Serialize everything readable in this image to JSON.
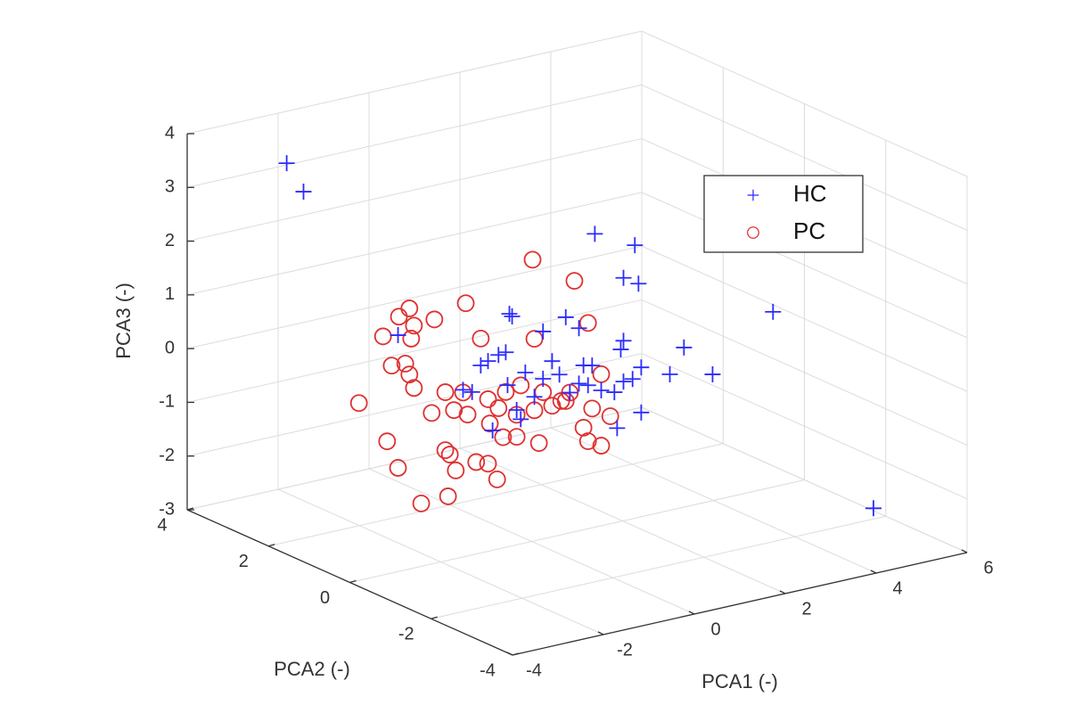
{
  "chart_data": {
    "type": "scatter3d",
    "xlabel": "PCA1 (-)",
    "ylabel": "PCA2 (-)",
    "zlabel": "PCA3 (-)",
    "xlim": [
      -4,
      6
    ],
    "ylim": [
      -4,
      4
    ],
    "zlim": [
      -3,
      4
    ],
    "xticks": [
      -4,
      -2,
      0,
      2,
      4,
      6
    ],
    "yticks": [
      -4,
      -2,
      0,
      2,
      4
    ],
    "zticks": [
      -3,
      -2,
      -1,
      0,
      1,
      2,
      3,
      4
    ],
    "grid": true,
    "legend": "upper right",
    "series": [
      {
        "name": "HC",
        "color": "#2b2bff",
        "marker": "+",
        "x": [
          -3.6,
          -3.23,
          1.39,
          2.27,
          2.02,
          2.35,
          5.31,
          -0.49,
          -0.43,
          0.75,
          1.04,
          0.25,
          -2.94,
          2.02,
          1.96,
          3.35,
          -0.57,
          -0.73,
          -0.96,
          -1.12,
          0.45,
          1.14,
          -0.14,
          0.25,
          0.61,
          2.41,
          3.04,
          3.98,
          1.04,
          1.24,
          1.53,
          2.02,
          2.22,
          1.82,
          -1.51,
          -1.31,
          -0.53,
          0.06,
          -0.33,
          -0.24,
          2.41,
          1.88,
          -0.86,
          5.73,
          1.33,
          0.84
        ],
        "y": [
          2,
          2,
          0,
          0,
          0,
          0,
          0,
          0,
          0,
          0,
          0,
          0,
          0,
          0,
          0,
          0,
          0,
          0,
          0,
          0,
          0,
          0,
          0,
          0,
          0,
          0,
          0,
          0,
          0,
          0,
          0,
          0,
          0,
          0,
          0,
          0,
          0,
          0,
          0,
          0,
          0,
          0,
          0,
          -2,
          0,
          0
        ],
        "z": [
          4.05,
          3.45,
          2.46,
          2.08,
          1.52,
          1.35,
          0.26,
          1.33,
          1.27,
          1.03,
          0.77,
          0.86,
          1.4,
          0.35,
          0.2,
          -0.03,
          0.63,
          0.61,
          0.54,
          0.49,
          0.27,
          0.06,
          0.17,
          -0.02,
          -0.01,
          -0.22,
          -0.47,
          -0.65,
          -0.26,
          -0.33,
          -0.48,
          -0.41,
          -0.4,
          -0.57,
          0.11,
          0.03,
          0.01,
          -0.32,
          -0.49,
          -0.68,
          -1.06,
          -1.25,
          -0.77,
          -2.8,
          0.02,
          -0.39
        ]
      },
      {
        "name": "PC",
        "color": "#e03030",
        "marker": "o",
        "x": [
          0.02,
          0.94,
          -1.45,
          -2.69,
          -2.92,
          -2.14,
          -2.59,
          -3.27,
          -2.65,
          -1.12,
          0.06,
          1.24,
          -3.08,
          -2.78,
          -2.69,
          -2.59,
          -1.9,
          -1.51,
          -0.96,
          -0.57,
          -0.24,
          0.25,
          0.84,
          1.53,
          -3.8,
          -2.2,
          -1.71,
          -1.41,
          -0.73,
          -0.33,
          0.06,
          0.45,
          0.65,
          1.33,
          1.73,
          -0.92,
          -0.33,
          0.16,
          1.14,
          1.24,
          1.53,
          -3.18,
          -1.9,
          -1.8,
          -1.22,
          -0.96,
          -0.76,
          -1.67,
          -2.94,
          -2.43,
          -1.84,
          -0.63,
          0.75
        ],
        "y": [
          0,
          0,
          0,
          0,
          0,
          0,
          0,
          0,
          0,
          0,
          0,
          0,
          0,
          0,
          0,
          0,
          0,
          0,
          0,
          0,
          0,
          0,
          0,
          0,
          0,
          0,
          0,
          0,
          0,
          0,
          0,
          0,
          0,
          0,
          0,
          0,
          0,
          0,
          0,
          0,
          0,
          0,
          0,
          0,
          0,
          0,
          0,
          0,
          0,
          0,
          0,
          0,
          0
        ],
        "z": [
          2.24,
          1.67,
          1.71,
          1.85,
          1.74,
          1.54,
          1.51,
          1.44,
          1.28,
          0.99,
          0.76,
          0.83,
          0.86,
          0.84,
          0.62,
          0.35,
          0.14,
          0.06,
          -0.17,
          -0.11,
          -0.05,
          -0.27,
          -0.39,
          -0.18,
          0.3,
          -0.19,
          -0.23,
          -0.37,
          -0.38,
          -0.58,
          -0.57,
          -0.56,
          -0.51,
          -0.78,
          -1.0,
          -0.63,
          -0.99,
          -1.2,
          -1.1,
          -1.37,
          -1.51,
          -0.53,
          -0.94,
          -1.04,
          -1.29,
          -1.37,
          -1.7,
          -1.36,
          -1.07,
          -1.83,
          -1.81,
          -0.94,
          -0.53
        ]
      }
    ]
  }
}
